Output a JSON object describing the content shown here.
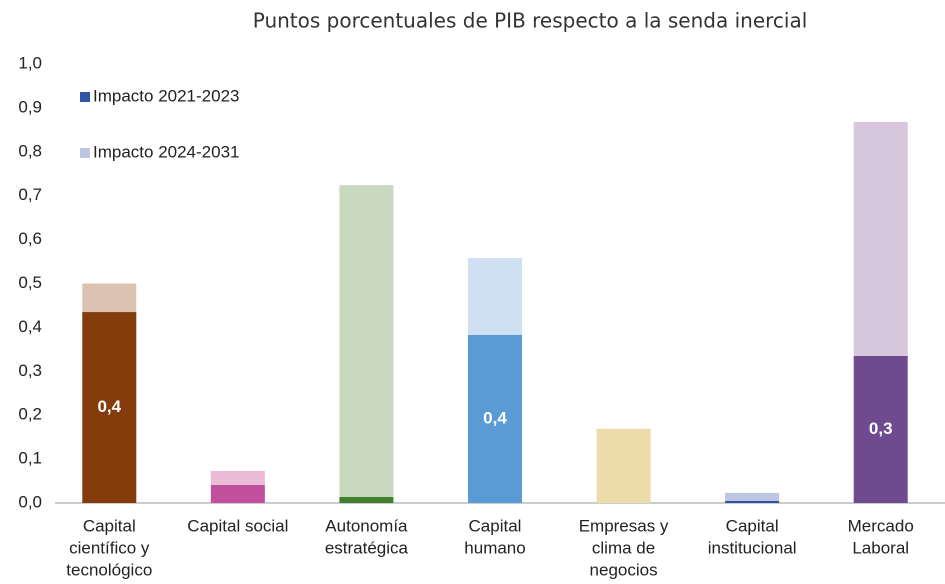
{
  "chart_data": {
    "type": "stacked_bar",
    "subtitle": "Puntos porcentuales de PIB respecto a la senda inercial",
    "categories": [
      [
        "Capital",
        "científico y",
        "tecnológico"
      ],
      [
        "Capital social"
      ],
      [
        "Autonomía",
        "estratégica"
      ],
      [
        "Capital",
        "humano"
      ],
      [
        "Empresas y",
        "clima de",
        "negocios"
      ],
      [
        "Capital",
        "institucional"
      ],
      [
        "Mercado",
        "Laboral"
      ]
    ],
    "series": [
      {
        "name": "Impacto 2021-2023",
        "color": "#2f55a4",
        "colors": [
          "#843c0c",
          "#c0509e",
          "#3f7f2e",
          "#5b9bd5",
          "#e7d5a8",
          "#2f55a4",
          "#6f4a8e"
        ],
        "values": [
          0.435,
          0.041,
          0.014,
          0.383,
          0,
          0.005,
          0.335
        ],
        "value_labels": [
          "0,4",
          null,
          null,
          "0,4",
          null,
          null,
          "0,3"
        ]
      },
      {
        "name": "Impacto 2024-2031",
        "color": "#bcc6e0",
        "colors": [
          "#dcc3b1",
          "#ebbcd8",
          "#c9d9c0",
          "#cfe0f2",
          "#ecdcaa",
          "#bcc6e0",
          "#d6c7dc"
        ],
        "values": [
          0.065,
          0.032,
          0.71,
          0.175,
          0.169,
          0.018,
          0.533
        ]
      }
    ],
    "ylim": [
      0,
      1
    ],
    "yticks": [
      {
        "value": 0,
        "label": "0,0"
      },
      {
        "value": 0.1,
        "label": "0,1"
      },
      {
        "value": 0.2,
        "label": "0,2"
      },
      {
        "value": 0.3,
        "label": "0,3"
      },
      {
        "value": 0.4,
        "label": "0,4"
      },
      {
        "value": 0.5,
        "label": "0,5"
      },
      {
        "value": 0.6,
        "label": "0,6"
      },
      {
        "value": 0.7,
        "label": "0,7"
      },
      {
        "value": 0.8,
        "label": "0,8"
      },
      {
        "value": 0.9,
        "label": "0,9"
      },
      {
        "value": 1,
        "label": "1,0"
      }
    ]
  }
}
